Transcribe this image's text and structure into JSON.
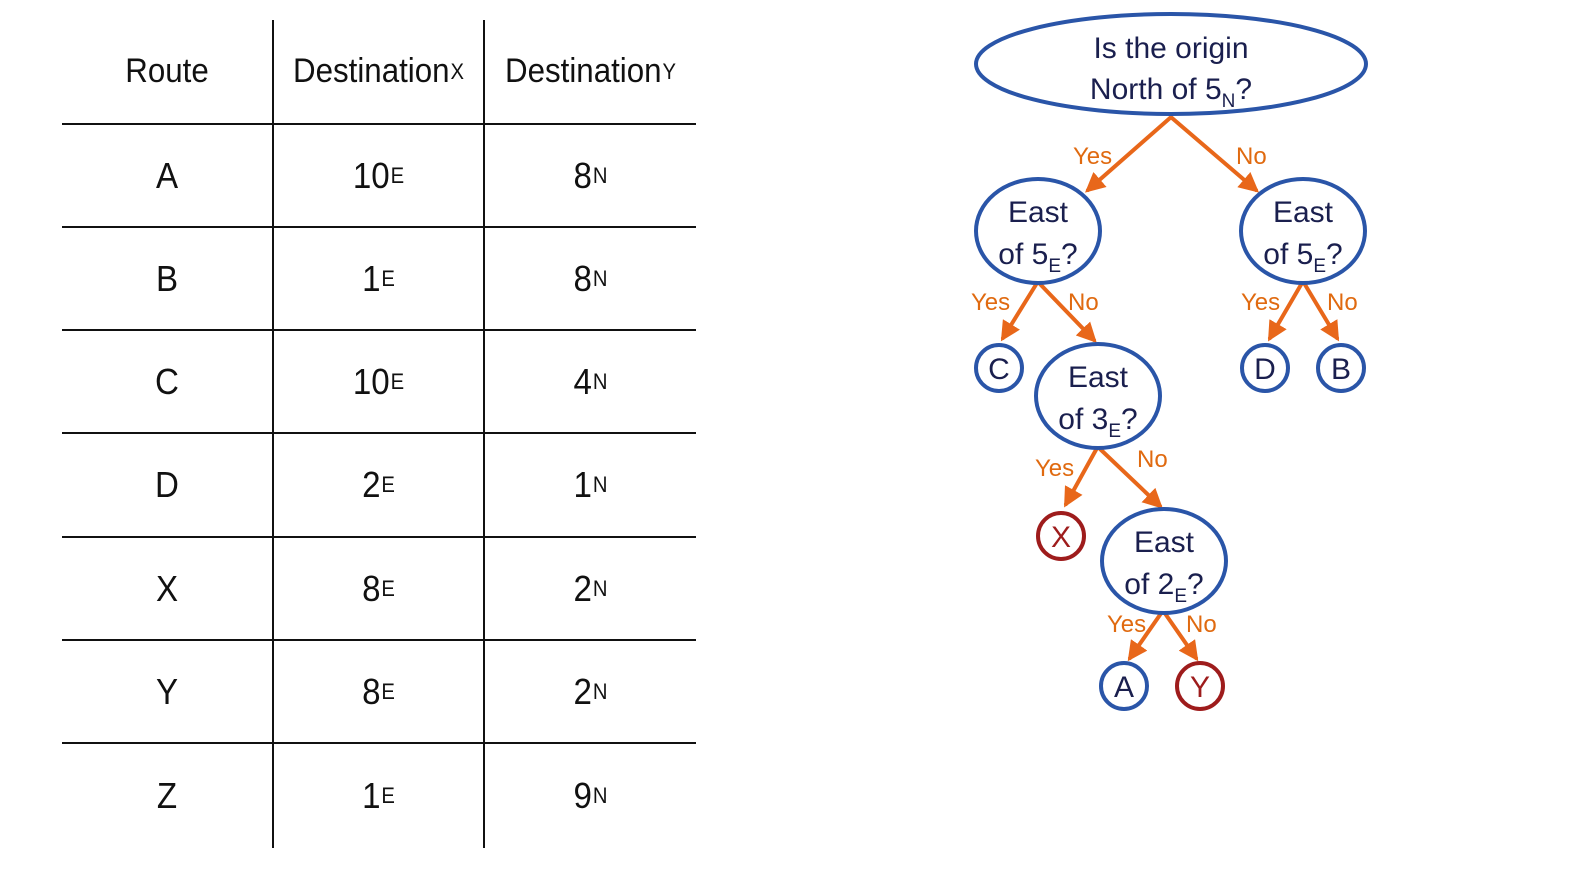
{
  "table": {
    "headers": [
      {
        "main": "Route",
        "sub": ""
      },
      {
        "main": "Destination",
        "sub": "X"
      },
      {
        "main": "Destination",
        "sub": "Y"
      }
    ],
    "rows": [
      {
        "route": "A",
        "x": {
          "v": "10",
          "u": "E"
        },
        "y": {
          "v": "8",
          "u": "N"
        }
      },
      {
        "route": "B",
        "x": {
          "v": "1",
          "u": "E"
        },
        "y": {
          "v": "8",
          "u": "N"
        }
      },
      {
        "route": "C",
        "x": {
          "v": "10",
          "u": "E"
        },
        "y": {
          "v": "4",
          "u": "N"
        }
      },
      {
        "route": "D",
        "x": {
          "v": "2",
          "u": "E"
        },
        "y": {
          "v": "1",
          "u": "N"
        }
      },
      {
        "route": "X",
        "x": {
          "v": "8",
          "u": "E"
        },
        "y": {
          "v": "2",
          "u": "N"
        }
      },
      {
        "route": "Y",
        "x": {
          "v": "8",
          "u": "E"
        },
        "y": {
          "v": "2",
          "u": "N"
        }
      },
      {
        "route": "Z",
        "x": {
          "v": "1",
          "u": "E"
        },
        "y": {
          "v": "9",
          "u": "N"
        }
      }
    ]
  },
  "tree": {
    "colors": {
      "node_stroke": "#2a55a8",
      "leaf_red": "#9e1c1c",
      "edge": "#e8671a",
      "text": "#1a1f4e"
    },
    "root": {
      "line1": "Is the origin",
      "line2_pre": "North of 5",
      "line2_sub": "N",
      "line2_post": "?"
    },
    "q_left": {
      "line1": "East",
      "line2_pre": "of 5",
      "line2_sub": "E",
      "line2_post": "?"
    },
    "q_right": {
      "line1": "East",
      "line2_pre": "of 5",
      "line2_sub": "E",
      "line2_post": "?"
    },
    "q_3": {
      "line1": "East",
      "line2_pre": "of 3",
      "line2_sub": "E",
      "line2_post": "?"
    },
    "q_2": {
      "line1": "East",
      "line2_pre": "of 2",
      "line2_sub": "E",
      "line2_post": "?"
    },
    "leaves": {
      "c": "C",
      "d": "D",
      "b": "B",
      "x": "X",
      "a": "A",
      "y": "Y"
    },
    "edge_labels": {
      "yes": "Yes",
      "no": "No"
    }
  }
}
